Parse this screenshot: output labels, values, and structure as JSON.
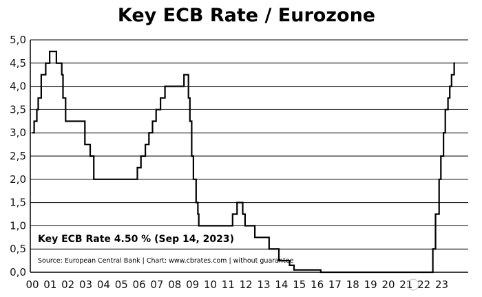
{
  "chart_data": {
    "type": "line",
    "title": "Key ECB Rate / Eurozone",
    "annotation": "Key ECB Rate 4.50 % (Sep 14, 2023)",
    "source": "Source: European Central Bank | Chart: www.cbrates.com | without guarantee",
    "xlabel": "",
    "ylabel": "",
    "ylim": [
      0,
      5
    ],
    "xlim": [
      1999.95,
      2023.75
    ],
    "grid": "horizontal",
    "line_color": "#000000",
    "y_ticks": [
      "0,0",
      "0,5",
      "1,0",
      "1,5",
      "2,0",
      "2,5",
      "3,0",
      "3,5",
      "4,0",
      "4,5",
      "5,0"
    ],
    "x_ticks": [
      {
        "label": "00",
        "x": 2000
      },
      {
        "label": "01",
        "x": 2001
      },
      {
        "label": "02",
        "x": 2002
      },
      {
        "label": "03",
        "x": 2003
      },
      {
        "label": "04",
        "x": 2004
      },
      {
        "label": "05",
        "x": 2005
      },
      {
        "label": "06",
        "x": 2006
      },
      {
        "label": "07",
        "x": 2007
      },
      {
        "label": "08",
        "x": 2008
      },
      {
        "label": "09",
        "x": 2009
      },
      {
        "label": "10",
        "x": 2010
      },
      {
        "label": "11",
        "x": 2011
      },
      {
        "label": "12",
        "x": 2012
      },
      {
        "label": "13",
        "x": 2013
      },
      {
        "label": "14",
        "x": 2014
      },
      {
        "label": "15",
        "x": 2015
      },
      {
        "label": "16",
        "x": 2016
      },
      {
        "label": "17",
        "x": 2017
      },
      {
        "label": "18",
        "x": 2018
      },
      {
        "label": "19",
        "x": 2019
      },
      {
        "label": "20",
        "x": 2020
      },
      {
        "label": "21",
        "x": 2021
      },
      {
        "label": "22",
        "x": 2022
      },
      {
        "label": "23",
        "x": 2023
      }
    ],
    "series": [
      {
        "step": "post",
        "points": [
          [
            2000.0,
            3.0
          ],
          [
            2000.1,
            3.25
          ],
          [
            2000.25,
            3.5
          ],
          [
            2000.33,
            3.75
          ],
          [
            2000.5,
            4.25
          ],
          [
            2000.75,
            4.5
          ],
          [
            2000.97,
            4.75
          ],
          [
            2001.35,
            4.5
          ],
          [
            2001.65,
            4.25
          ],
          [
            2001.72,
            3.75
          ],
          [
            2001.87,
            3.25
          ],
          [
            2002.95,
            2.75
          ],
          [
            2003.25,
            2.5
          ],
          [
            2003.45,
            2.0
          ],
          [
            2005.9,
            2.25
          ],
          [
            2006.1,
            2.5
          ],
          [
            2006.35,
            2.75
          ],
          [
            2006.55,
            3.0
          ],
          [
            2006.75,
            3.25
          ],
          [
            2006.95,
            3.5
          ],
          [
            2007.2,
            3.75
          ],
          [
            2007.45,
            4.0
          ],
          [
            2008.52,
            4.25
          ],
          [
            2008.77,
            3.75
          ],
          [
            2008.85,
            3.25
          ],
          [
            2008.95,
            2.5
          ],
          [
            2009.05,
            2.0
          ],
          [
            2009.2,
            1.5
          ],
          [
            2009.3,
            1.25
          ],
          [
            2009.35,
            1.0
          ],
          [
            2011.25,
            1.25
          ],
          [
            2011.5,
            1.5
          ],
          [
            2011.82,
            1.25
          ],
          [
            2011.95,
            1.0
          ],
          [
            2012.5,
            0.75
          ],
          [
            2013.3,
            0.5
          ],
          [
            2013.85,
            0.25
          ],
          [
            2014.45,
            0.15
          ],
          [
            2014.7,
            0.05
          ],
          [
            2016.2,
            0.0
          ],
          [
            2022.5,
            0.5
          ],
          [
            2022.65,
            1.25
          ],
          [
            2022.85,
            2.0
          ],
          [
            2022.95,
            2.5
          ],
          [
            2023.1,
            3.0
          ],
          [
            2023.2,
            3.5
          ],
          [
            2023.35,
            3.75
          ],
          [
            2023.45,
            4.0
          ],
          [
            2023.55,
            4.25
          ],
          [
            2023.7,
            4.5
          ],
          [
            2023.75,
            4.5
          ]
        ]
      }
    ]
  }
}
